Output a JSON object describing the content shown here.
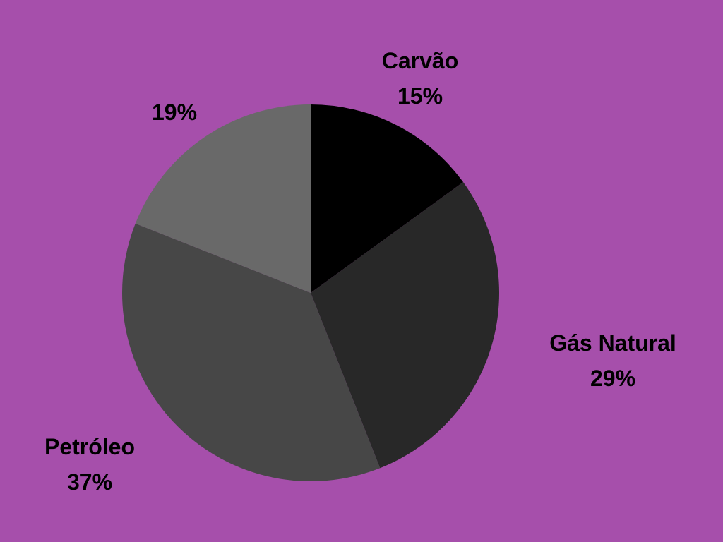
{
  "page": {
    "background_color": "#a64fab"
  },
  "chart_data": {
    "type": "pie",
    "title": "",
    "start_angle_deg": 0,
    "direction": "clockwise",
    "legend": "none",
    "slices": [
      {
        "label": "Carvão",
        "value": 15,
        "value_label": "15%",
        "color": "#000000"
      },
      {
        "label": "Gás Natural",
        "value": 29,
        "value_label": "29%",
        "color": "#282828"
      },
      {
        "label": "Petróleo",
        "value": 37,
        "value_label": "37%",
        "color": "#474747"
      },
      {
        "label": "",
        "value": 19,
        "value_label": "19%",
        "color": "#696969"
      }
    ]
  }
}
